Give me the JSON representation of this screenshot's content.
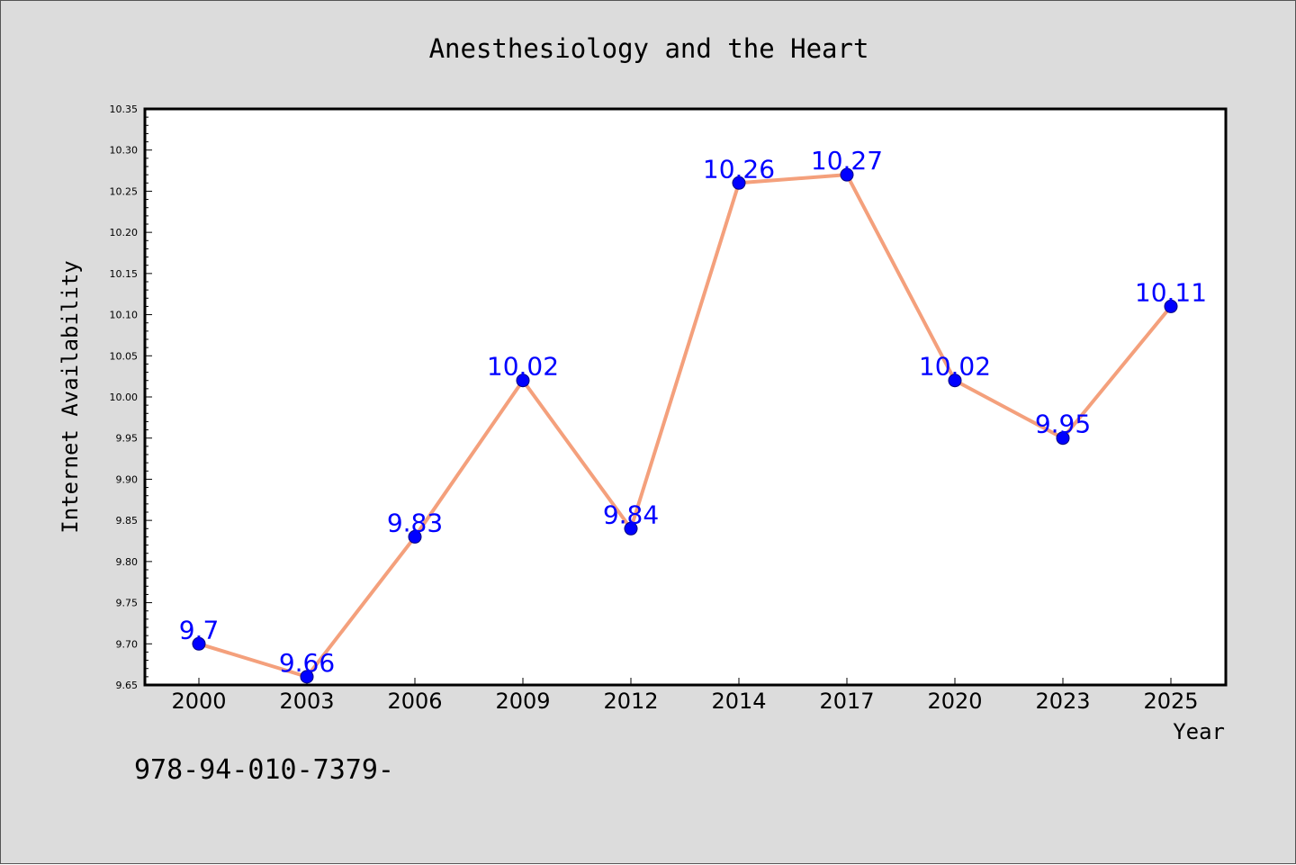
{
  "chart_data": {
    "type": "line",
    "title": "Anesthesiology and the Heart",
    "xlabel": "Year",
    "ylabel": "Internet Availability",
    "categories": [
      "2000",
      "2003",
      "2006",
      "2009",
      "2012",
      "2014",
      "2017",
      "2020",
      "2023",
      "2025"
    ],
    "series": [
      {
        "values": [
          9.7,
          9.66,
          9.83,
          10.02,
          9.84,
          10.26,
          10.27,
          10.02,
          9.95,
          10.11
        ]
      }
    ],
    "data_labels": [
      "9.7",
      "9.66",
      "9.83",
      "10.02",
      "9.84",
      "10.26",
      "10.27",
      "10.02",
      "9.95",
      "10.11"
    ],
    "ylim": [
      9.65,
      10.35
    ],
    "yticks": [
      "9.65",
      "9.70",
      "9.75",
      "9.80",
      "9.85",
      "9.90",
      "9.95",
      "10.00",
      "10.05",
      "10.10",
      "10.15",
      "10.20",
      "10.25",
      "10.30",
      "10.35"
    ],
    "grid": false,
    "legend": "none",
    "colors": {
      "line": "#f4a07c",
      "marker": "#0000ff",
      "marker_edge": "#000080",
      "data_label": "#0000ff",
      "figure_background": "#dcdcdc",
      "plot_background": "#ffffff"
    }
  },
  "footer": {
    "isbn_text": "978-94-010-7379-"
  }
}
